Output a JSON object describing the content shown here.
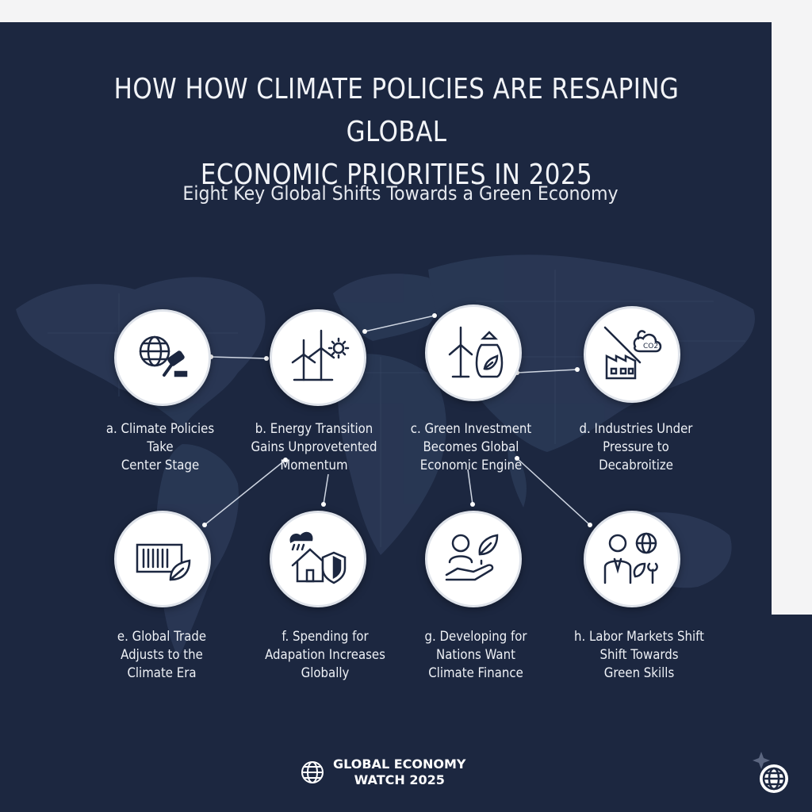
{
  "title": {
    "line1": "HOW  HOW CLIMATE POLICIES ARE RESAPING GLOBAL",
    "line2": "ECONOMIC PRIORITIES IN 2025"
  },
  "subtitle": "Eight Key Global Shifts Towards a Green Economy",
  "nodes": [
    {
      "icon": "globe-gavel-icon",
      "label": [
        "a. Climate Policies",
        "Take",
        "Center Stage"
      ]
    },
    {
      "icon": "wind-turbine-sun-icon",
      "label": [
        "b. Energy Transition",
        "Gains Unprovetented",
        "Momentum"
      ]
    },
    {
      "icon": "turbine-money-bag-icon",
      "label": [
        "c. Green Investment",
        "Becomes Global",
        "Economic Engine"
      ]
    },
    {
      "icon": "factory-co2-icon",
      "label": [
        "d. Industries Under",
        "Pressure to",
        "Decabroitize"
      ]
    },
    {
      "icon": "container-leaf-icon",
      "label": [
        "e. Global Trade",
        "Adjusts to the",
        "Climate Era"
      ]
    },
    {
      "icon": "house-storm-shield-icon",
      "label": [
        "f. Spending for",
        "Adapation Increases",
        "Globally"
      ]
    },
    {
      "icon": "person-hand-leaf-icon",
      "label": [
        "g. Developing for",
        "Nations Want",
        "Climate Finance"
      ]
    },
    {
      "icon": "worker-globe-tools-icon",
      "label": [
        "h. Labor Markets Shift",
        "Shift Towards",
        "Green Skills"
      ]
    }
  ],
  "co2_text": "CO2",
  "footer": {
    "line1": "GLOBAL ECONOMY",
    "line2": "WATCH 2025"
  },
  "colors": {
    "background": "#1c2740",
    "text": "#eef1f6",
    "circle": "#ffffff",
    "icon_stroke": "#1c2740"
  }
}
